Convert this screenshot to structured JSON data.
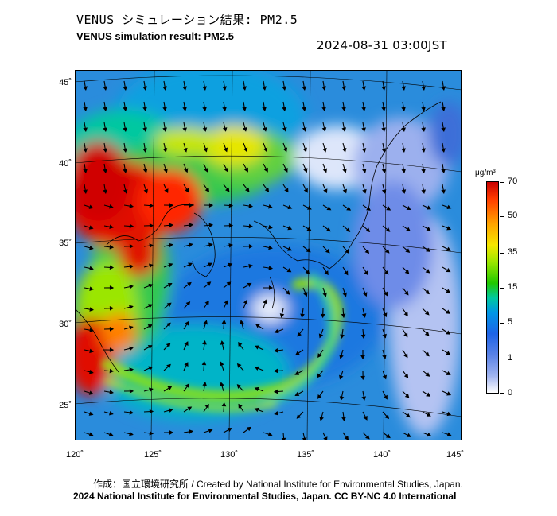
{
  "header": {
    "title_jp": "VENUS シミュレーション結果: PM2.5",
    "title_en": "VENUS simulation result: PM2.5",
    "timestamp": "2024-08-31 03:00JST"
  },
  "map": {
    "projection": "lambert-conic",
    "lon_range": [
      120,
      145
    ],
    "lat_range": [
      23,
      46
    ],
    "lat_labels": [
      "45˚",
      "40˚",
      "35˚",
      "30˚",
      "25˚"
    ],
    "lon_labels": [
      "120˚",
      "125˚",
      "130˚",
      "135˚",
      "140˚",
      "145˚"
    ],
    "wind_vectors": "shown",
    "coastlines": "shown"
  },
  "colorbar": {
    "unit_label": "μg/m³",
    "ticks": [
      "70",
      "50",
      "35",
      "15",
      "5",
      "1",
      "0"
    ],
    "colors": [
      "#c80000",
      "#ff3c00",
      "#ffa500",
      "#f5e600",
      "#9be600",
      "#20c800",
      "#00c8a0",
      "#0096e6",
      "#1e64e6",
      "#5a82e6",
      "#a0b4f0",
      "#ffffff"
    ]
  },
  "footer": {
    "credit_1": "作成：国立環境研究所 / Created by National Institute for Environmental Studies, Japan.",
    "credit_2": "2024 National Institute for Environmental Studies, Japan. CC BY-NC 4.0 International"
  }
}
